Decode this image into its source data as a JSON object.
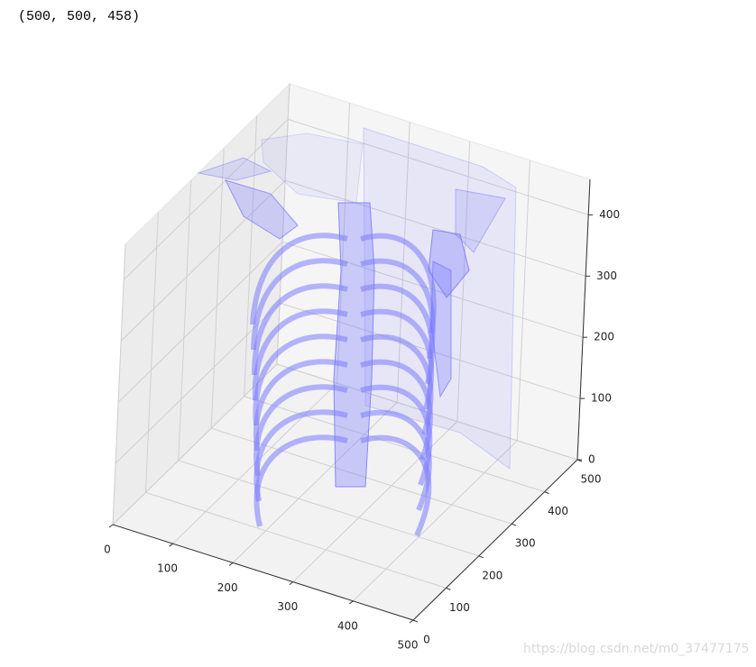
{
  "output": {
    "text": "(500, 500, 458)"
  },
  "chart_data": {
    "type": "surface3d",
    "xlim": [
      0,
      500
    ],
    "ylim": [
      0,
      500
    ],
    "zlim": [
      0,
      458
    ],
    "xticks": [
      0,
      100,
      200,
      300,
      400,
      500
    ],
    "yticks": [
      0,
      100,
      200,
      300,
      400,
      500
    ],
    "zticks": [
      0,
      100,
      200,
      300,
      400
    ],
    "color": "#7b7bff",
    "grid": true
  },
  "watermark": "https://blog.csdn.net/m0_37477175"
}
